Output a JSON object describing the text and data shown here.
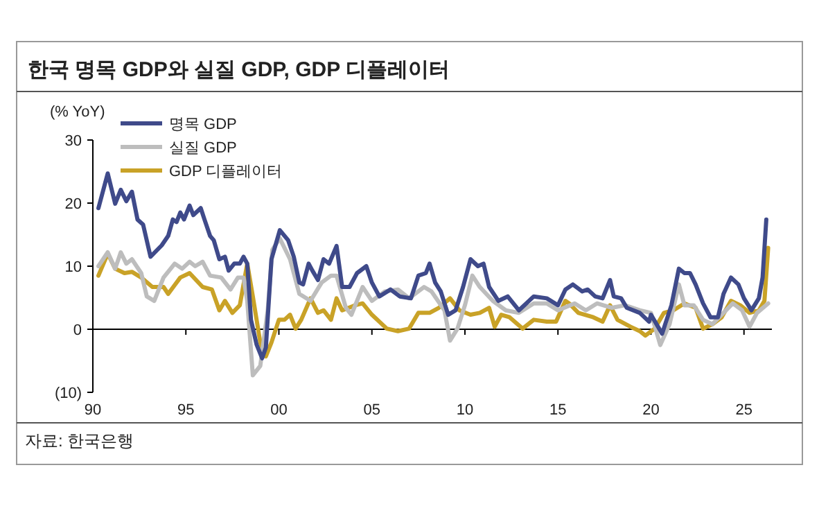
{
  "chart_data": {
    "type": "line",
    "title": "한국 명목 GDP와 실질 GDP, GDP 디플레이터",
    "ylabel": "(% YoY)",
    "annotations": [
      "자료: 한국은행"
    ],
    "xlim": [
      1990,
      2026.5
    ],
    "ylim": [
      -10,
      30
    ],
    "xticks": [
      {
        "value": 1990,
        "label": "90"
      },
      {
        "value": 1995,
        "label": "95"
      },
      {
        "value": 2000,
        "label": "00"
      },
      {
        "value": 2005,
        "label": "05"
      },
      {
        "value": 2010,
        "label": "10"
      },
      {
        "value": 2015,
        "label": "15"
      },
      {
        "value": 2020,
        "label": "20"
      },
      {
        "value": 2025,
        "label": "25"
      }
    ],
    "yticks": [
      30,
      20,
      10,
      0,
      {
        "value": -10,
        "label": "(10)"
      }
    ],
    "legend": "top left",
    "line_style": "solid",
    "series": [
      {
        "name": "명목 GDP",
        "color": "#3f4a8a",
        "x": [
          1990.3,
          1990.8,
          1991.2,
          1991.5,
          1991.8,
          1992.1,
          1992.4,
          1992.7,
          1993.1,
          1993.7,
          1994.05,
          1994.3,
          1994.5,
          1994.7,
          1994.9,
          1995.2,
          1995.4,
          1995.8,
          1996.0,
          1996.3,
          1996.5,
          1996.8,
          1997.1,
          1997.3,
          1997.6,
          1997.9,
          1998.1,
          1998.3,
          1998.5,
          1998.8,
          1999.1,
          1999.3,
          1999.6,
          2000.05,
          2000.5,
          2000.8,
          2001.1,
          2001.3,
          2001.6,
          2001.8,
          2002.1,
          2002.4,
          2002.7,
          2002.9,
          2003.1,
          2003.4,
          2003.8,
          2004.2,
          2004.7,
          2005.0,
          2005.4,
          2006.0,
          2006.5,
          2007.1,
          2007.5,
          2007.9,
          2008.1,
          2008.4,
          2008.7,
          2009.1,
          2009.5,
          2009.9,
          2010.3,
          2010.7,
          2011.0,
          2011.3,
          2011.8,
          2012.3,
          2012.9,
          2013.7,
          2014.4,
          2015.0,
          2015.4,
          2015.8,
          2016.3,
          2016.6,
          2017.0,
          2017.4,
          2017.8,
          2018.0,
          2018.4,
          2018.7,
          2019.4,
          2019.9,
          2020.0,
          2020.6,
          2021.1,
          2021.5,
          2021.8,
          2022.1,
          2022.4,
          2022.8,
          2023.2,
          2023.6,
          2023.9,
          2024.3,
          2024.7,
          2025.0,
          2025.4,
          2025.8,
          2026.0,
          2026.2
        ],
        "values": [
          19.2,
          24.7,
          19.9,
          22.1,
          20.3,
          21.8,
          17.4,
          16.6,
          11.5,
          13.3,
          14.8,
          17.4,
          17.0,
          18.5,
          17.4,
          19.6,
          18.1,
          19.2,
          17.4,
          14.8,
          14.1,
          11.1,
          11.5,
          9.3,
          10.4,
          10.4,
          11.5,
          10.4,
          1.5,
          -2.4,
          -4.6,
          -2.9,
          11.1,
          15.7,
          14.1,
          11.5,
          7.4,
          7.1,
          10.4,
          9.3,
          7.8,
          11.1,
          10.4,
          11.8,
          13.2,
          6.7,
          6.7,
          8.9,
          10.0,
          7.4,
          5.2,
          6.3,
          5.2,
          4.9,
          8.5,
          8.9,
          10.4,
          7.4,
          6.0,
          2.3,
          3.0,
          6.7,
          11.1,
          10.0,
          10.4,
          6.7,
          4.5,
          5.2,
          3.0,
          5.2,
          4.9,
          3.8,
          6.3,
          7.1,
          6.0,
          6.3,
          5.2,
          4.9,
          7.8,
          5.2,
          4.9,
          3.4,
          2.6,
          1.2,
          2.3,
          -0.7,
          3.8,
          9.6,
          8.9,
          8.9,
          7.1,
          4.1,
          1.9,
          1.9,
          5.6,
          8.2,
          7.1,
          4.9,
          3.0,
          4.9,
          8.2,
          17.4
        ]
      },
      {
        "name": "실질 GDP",
        "color": "#bdbdbd",
        "x": [
          1990.3,
          1990.8,
          1991.2,
          1991.5,
          1991.8,
          1992.1,
          1992.6,
          1992.9,
          1993.3,
          1993.8,
          1994.4,
          1994.8,
          1995.2,
          1995.5,
          1995.9,
          1996.3,
          1996.9,
          1997.4,
          1997.8,
          1998.1,
          1998.3,
          1998.6,
          1999.0,
          1999.4,
          1999.65,
          2000.05,
          2000.6,
          2001.1,
          2001.7,
          2002.3,
          2002.8,
          2003.1,
          2003.6,
          2003.9,
          2004.5,
          2005.0,
          2005.7,
          2006.4,
          2007.0,
          2007.8,
          2008.2,
          2008.9,
          2009.2,
          2009.6,
          2010.0,
          2010.4,
          2010.8,
          2011.5,
          2012.2,
          2012.9,
          2013.7,
          2014.4,
          2015.0,
          2015.9,
          2016.5,
          2017.1,
          2017.9,
          2018.6,
          2019.4,
          2020.0,
          2020.5,
          2021.0,
          2021.5,
          2021.8,
          2022.3,
          2022.8,
          2023.3,
          2023.8,
          2024.4,
          2024.9,
          2025.3,
          2025.7,
          2026.3
        ],
        "values": [
          10.0,
          12.2,
          9.6,
          12.2,
          10.4,
          11.1,
          8.9,
          5.2,
          4.5,
          8.2,
          10.4,
          9.6,
          10.7,
          10.0,
          10.7,
          8.5,
          8.2,
          6.3,
          8.2,
          8.2,
          4.5,
          -7.3,
          -5.8,
          3.0,
          12.6,
          14.4,
          11.1,
          5.6,
          4.5,
          7.4,
          8.5,
          8.5,
          3.4,
          2.3,
          6.7,
          4.5,
          6.0,
          6.3,
          4.9,
          6.7,
          6.0,
          3.0,
          -1.8,
          0.1,
          3.8,
          8.5,
          6.7,
          4.5,
          3.0,
          2.6,
          4.1,
          4.1,
          3.0,
          4.1,
          3.0,
          4.1,
          3.4,
          3.8,
          3.0,
          2.6,
          -2.5,
          0.8,
          7.1,
          3.8,
          3.8,
          1.5,
          0.8,
          2.3,
          4.1,
          3.0,
          0.4,
          2.6,
          4.1
        ]
      },
      {
        "name": "GDP 디플레이터",
        "color": "#c9a227",
        "x": [
          1990.3,
          1990.8,
          1991.2,
          1991.7,
          1992.1,
          1992.6,
          1993.2,
          1993.8,
          1994.05,
          1994.7,
          1995.2,
          1995.9,
          1996.4,
          1996.8,
          1997.1,
          1997.5,
          1997.9,
          1998.3,
          1998.6,
          1999.0,
          1999.3,
          1999.6,
          2000.0,
          2000.3,
          2000.6,
          2000.9,
          2001.2,
          2001.7,
          2002.1,
          2002.4,
          2002.8,
          2003.1,
          2003.4,
          2004.1,
          2004.5,
          2005.0,
          2005.8,
          2006.4,
          2007.0,
          2007.5,
          2008.1,
          2008.6,
          2009.2,
          2009.7,
          2010.3,
          2010.8,
          2011.3,
          2011.6,
          2011.95,
          2012.4,
          2013.1,
          2013.7,
          2014.4,
          2014.9,
          2015.4,
          2015.6,
          2016.1,
          2016.9,
          2017.4,
          2017.8,
          2018.2,
          2018.9,
          2019.4,
          2019.7,
          2020.2,
          2020.7,
          2021.2,
          2021.8,
          2022.4,
          2022.8,
          2023.3,
          2023.8,
          2024.3,
          2024.8,
          2025.3,
          2025.8,
          2026.1,
          2026.3
        ],
        "values": [
          8.5,
          12.0,
          9.6,
          8.9,
          9.1,
          8.2,
          6.7,
          6.7,
          5.6,
          8.2,
          8.9,
          6.7,
          6.3,
          3.0,
          4.5,
          2.6,
          3.8,
          10.4,
          5.2,
          -2.1,
          -4.3,
          -2.1,
          1.5,
          1.5,
          2.3,
          0.1,
          1.5,
          4.9,
          2.6,
          3.0,
          1.5,
          4.9,
          3.0,
          3.8,
          4.1,
          2.3,
          0.1,
          -0.3,
          0.1,
          2.6,
          2.6,
          3.4,
          4.9,
          3.0,
          2.3,
          2.6,
          3.4,
          0.4,
          2.3,
          1.9,
          0.1,
          1.5,
          1.2,
          1.2,
          4.5,
          4.1,
          2.6,
          1.9,
          1.2,
          3.8,
          1.5,
          0.4,
          -0.3,
          -1.0,
          0.1,
          2.6,
          3.0,
          4.1,
          3.4,
          0.1,
          0.8,
          1.9,
          4.5,
          3.8,
          2.6,
          3.0,
          4.5,
          12.9
        ]
      }
    ]
  }
}
